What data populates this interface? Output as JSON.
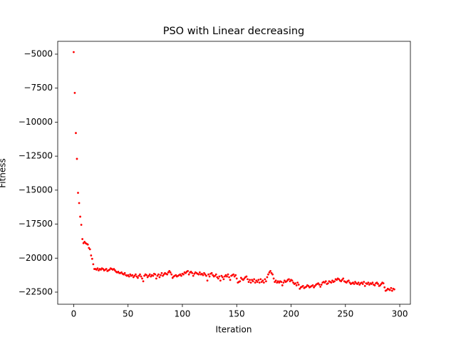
{
  "chart_data": {
    "type": "scatter",
    "title": "PSO with Linear decreasing",
    "x_label": "Iteration",
    "y_label": "Fitness",
    "xlim": [
      -14.7,
      309.8
    ],
    "ylim": [
      -23391,
      -4057
    ],
    "xticks": [
      0,
      50,
      100,
      150,
      200,
      250,
      300
    ],
    "yticks": [
      {
        "value": -22500,
        "label": "−22500"
      },
      {
        "value": -20000,
        "label": "−20000"
      },
      {
        "value": -17500,
        "label": "−17500"
      },
      {
        "value": -15000,
        "label": "−15000"
      },
      {
        "value": -12500,
        "label": "−12500"
      },
      {
        "value": -10000,
        "label": "−10000"
      },
      {
        "value": -7500,
        "label": "−7500"
      },
      {
        "value": -5000,
        "label": "−5000"
      }
    ],
    "color": "#ff0000",
    "x": [
      0,
      1,
      2,
      3,
      4,
      5,
      6,
      7,
      8,
      9,
      10,
      11,
      12,
      13,
      14,
      15,
      16,
      17,
      18,
      19,
      20,
      21,
      22,
      23,
      24,
      25,
      26,
      27,
      28,
      29,
      30,
      31,
      32,
      33,
      34,
      35,
      36,
      37,
      38,
      39,
      40,
      41,
      42,
      43,
      44,
      45,
      46,
      47,
      48,
      49,
      50,
      51,
      52,
      53,
      54,
      55,
      56,
      57,
      58,
      59,
      60,
      61,
      62,
      63,
      64,
      65,
      66,
      67,
      68,
      69,
      70,
      71,
      72,
      73,
      74,
      75,
      76,
      77,
      78,
      79,
      80,
      81,
      82,
      83,
      84,
      85,
      86,
      87,
      88,
      89,
      90,
      91,
      92,
      93,
      94,
      95,
      96,
      97,
      98,
      99,
      100,
      101,
      102,
      103,
      104,
      105,
      106,
      107,
      108,
      109,
      110,
      111,
      112,
      113,
      114,
      115,
      116,
      117,
      118,
      119,
      120,
      121,
      122,
      123,
      124,
      125,
      126,
      127,
      128,
      129,
      130,
      131,
      132,
      133,
      134,
      135,
      136,
      137,
      138,
      139,
      140,
      141,
      142,
      143,
      144,
      145,
      146,
      147,
      148,
      149,
      150,
      151,
      152,
      153,
      154,
      155,
      156,
      157,
      158,
      159,
      160,
      161,
      162,
      163,
      164,
      165,
      166,
      167,
      168,
      169,
      170,
      171,
      172,
      173,
      174,
      175,
      176,
      177,
      178,
      179,
      180,
      181,
      182,
      183,
      184,
      185,
      186,
      187,
      188,
      189,
      190,
      191,
      192,
      193,
      194,
      195,
      196,
      197,
      198,
      199,
      200,
      201,
      202,
      203,
      204,
      205,
      206,
      207,
      208,
      209,
      210,
      211,
      212,
      213,
      214,
      215,
      216,
      217,
      218,
      219,
      220,
      221,
      222,
      223,
      224,
      225,
      226,
      227,
      228,
      229,
      230,
      231,
      232,
      233,
      234,
      235,
      236,
      237,
      238,
      239,
      240,
      241,
      242,
      243,
      244,
      245,
      246,
      247,
      248,
      249,
      250,
      251,
      252,
      253,
      254,
      255,
      256,
      257,
      258,
      259,
      260,
      261,
      262,
      263,
      264,
      265,
      266,
      267,
      268,
      269,
      270,
      271,
      272,
      273,
      274,
      275,
      276,
      277,
      278,
      279,
      280,
      281,
      282,
      283,
      284,
      285,
      286,
      287,
      288,
      289,
      290,
      291,
      292,
      293,
      294,
      295
    ],
    "values": [
      -4850,
      -7850,
      -10800,
      -12700,
      -15200,
      -15950,
      -16950,
      -17550,
      -18600,
      -18900,
      -18800,
      -18900,
      -18950,
      -19000,
      -19250,
      -19350,
      -19800,
      -20050,
      -20450,
      -20800,
      -20800,
      -20850,
      -20750,
      -20900,
      -20800,
      -20850,
      -20750,
      -20800,
      -20900,
      -20850,
      -20800,
      -20950,
      -20900,
      -20850,
      -20750,
      -20800,
      -20850,
      -20800,
      -20900,
      -21000,
      -21050,
      -21000,
      -21100,
      -21100,
      -21050,
      -21150,
      -21200,
      -21100,
      -21250,
      -21300,
      -21250,
      -21350,
      -21200,
      -21300,
      -21250,
      -21400,
      -21300,
      -21200,
      -21350,
      -21450,
      -21300,
      -21200,
      -21350,
      -21500,
      -21700,
      -21300,
      -21200,
      -21250,
      -21400,
      -21300,
      -21200,
      -21350,
      -21250,
      -21300,
      -21150,
      -21200,
      -21500,
      -21300,
      -21200,
      -21400,
      -21250,
      -21100,
      -21300,
      -21200,
      -21100,
      -21150,
      -21200,
      -21050,
      -20950,
      -21050,
      -21200,
      -21450,
      -21350,
      -21300,
      -21250,
      -21350,
      -21300,
      -21250,
      -21200,
      -21300,
      -21150,
      -21200,
      -21050,
      -21100,
      -21000,
      -20950,
      -21200,
      -21050,
      -21000,
      -21100,
      -21300,
      -21150,
      -21050,
      -21100,
      -21150,
      -21200,
      -21050,
      -21200,
      -21150,
      -21250,
      -21100,
      -21200,
      -21300,
      -21650,
      -21200,
      -21350,
      -21150,
      -21100,
      -21250,
      -21350,
      -21300,
      -21200,
      -21400,
      -21500,
      -21350,
      -21650,
      -21300,
      -21400,
      -21550,
      -21350,
      -21250,
      -21350,
      -21200,
      -21400,
      -21600,
      -21300,
      -21250,
      -21200,
      -21350,
      -21250,
      -21500,
      -21800,
      -21750,
      -21700,
      -21450,
      -21550,
      -21600,
      -21500,
      -21400,
      -21350,
      -21550,
      -21750,
      -21600,
      -21800,
      -21600,
      -21700,
      -21550,
      -21800,
      -21650,
      -21750,
      -21600,
      -21800,
      -21550,
      -21750,
      -21650,
      -21800,
      -21550,
      -21700,
      -21400,
      -21200,
      -21050,
      -20950,
      -21100,
      -21200,
      -21500,
      -21750,
      -21650,
      -21800,
      -21700,
      -21800,
      -21700,
      -21750,
      -22000,
      -21800,
      -21650,
      -21750,
      -21700,
      -21600,
      -21550,
      -21700,
      -21600,
      -21650,
      -21800,
      -21900,
      -21850,
      -22000,
      -21800,
      -21950,
      -22250,
      -22150,
      -22100,
      -22050,
      -22200,
      -22150,
      -22100,
      -22000,
      -22050,
      -22150,
      -22100,
      -22050,
      -22000,
      -22150,
      -22050,
      -21950,
      -21900,
      -21850,
      -21950,
      -22100,
      -21950,
      -21800,
      -21750,
      -21800,
      -21700,
      -21900,
      -21850,
      -21700,
      -21750,
      -21800,
      -21650,
      -21750,
      -21700,
      -21550,
      -21600,
      -21500,
      -21550,
      -21650,
      -21700,
      -21600,
      -21500,
      -21700,
      -21750,
      -21800,
      -21700,
      -21650,
      -21800,
      -21900,
      -21850,
      -21800,
      -21900,
      -21750,
      -21850,
      -21900,
      -21800,
      -21950,
      -21850,
      -21800,
      -21900,
      -21750,
      -22050,
      -21850,
      -21900,
      -21800,
      -21950,
      -21850,
      -21900,
      -21800,
      -21950,
      -22000,
      -21850,
      -21800,
      -21900,
      -22050,
      -22000,
      -21900,
      -21800,
      -21850,
      -22150,
      -22400,
      -22350,
      -22250,
      -22300,
      -22350,
      -22200,
      -22400,
      -22250,
      -22300
    ]
  }
}
